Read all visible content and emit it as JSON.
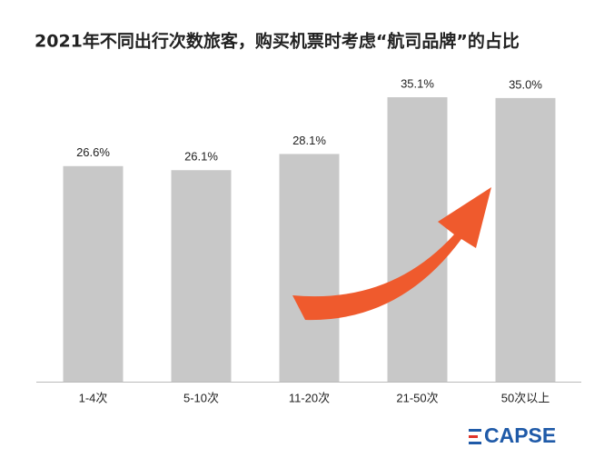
{
  "chart_data": {
    "type": "bar",
    "title": "2021年不同出行次数旅客，购买机票时考虑“航司品牌”的占比",
    "categories": [
      "1-4次",
      "5-10次",
      "11-20次",
      "21-50次",
      "50次以上"
    ],
    "values": [
      26.6,
      26.1,
      28.1,
      35.1,
      35.0
    ],
    "value_labels": [
      "26.6%",
      "26.1%",
      "28.1%",
      "35.1%",
      "35.0%"
    ],
    "color": "#c8c8c8"
  },
  "logo": "CAPSE"
}
